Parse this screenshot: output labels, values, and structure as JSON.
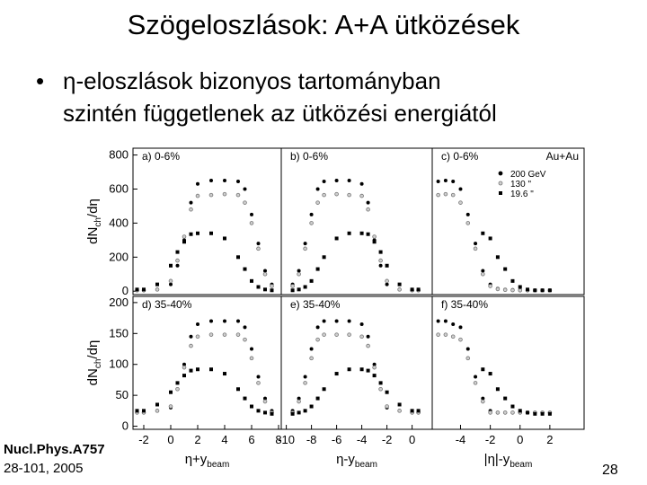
{
  "slide": {
    "title": "Szögeloszlások: A+A ütközések",
    "bullet": [
      "η-eloszlások bizonyos tartományban",
      "szintén függetlenek az ütközési energiától"
    ],
    "reference": [
      "Nucl.Phys.A757",
      "28-101, 2005"
    ],
    "page_number": "28"
  },
  "chart_data": [
    {
      "type": "scatter",
      "title": "a) 0-6%",
      "y_label": {
        "main": "dN",
        "sub": "ch",
        "tail": "/dη"
      },
      "x": [
        -2.5,
        -2,
        -1,
        0,
        0.5,
        1,
        1.5,
        2,
        3,
        4,
        5,
        5.5,
        6,
        6.5,
        7,
        7.5
      ],
      "series": [
        {
          "color": "#000000",
          "marker": "circle",
          "values": [
            5,
            5,
            10,
            40,
            150,
            300,
            520,
            630,
            650,
            650,
            645,
            600,
            450,
            280,
            120,
            40
          ]
        },
        {
          "color": "#777777",
          "marker": "circle-open",
          "values": [
            5,
            5,
            10,
            60,
            180,
            320,
            480,
            560,
            565,
            570,
            565,
            520,
            400,
            250,
            100,
            30
          ]
        },
        {
          "color": "#000000",
          "marker": "square",
          "values": [
            10,
            10,
            40,
            150,
            230,
            290,
            335,
            340,
            340,
            310,
            200,
            130,
            60,
            25,
            10,
            5
          ]
        }
      ],
      "xlim": [
        -2.8,
        8.2
      ],
      "ylim": [
        -20,
        840
      ],
      "yticks": [
        0,
        200,
        400,
        600,
        800
      ]
    },
    {
      "type": "scatter",
      "title": "b) 0-6%",
      "x": [
        -9.5,
        -9,
        -8.5,
        -8,
        -7.5,
        -7,
        -6,
        -5,
        -4,
        -3.5,
        -3,
        -2.5,
        -2,
        -1,
        0,
        0.5
      ],
      "series": [
        {
          "color": "#000000",
          "marker": "circle",
          "values": [
            40,
            120,
            280,
            450,
            600,
            645,
            650,
            650,
            630,
            520,
            300,
            150,
            40,
            10,
            5,
            5
          ]
        },
        {
          "color": "#777777",
          "marker": "circle-open",
          "values": [
            30,
            100,
            250,
            400,
            520,
            565,
            570,
            565,
            560,
            480,
            320,
            180,
            60,
            10,
            5,
            5
          ]
        },
        {
          "color": "#000000",
          "marker": "square",
          "values": [
            5,
            10,
            25,
            60,
            130,
            200,
            310,
            340,
            340,
            335,
            290,
            230,
            150,
            40,
            10,
            10
          ]
        }
      ],
      "xlim": [
        -10.4,
        1.6
      ],
      "ylim": [
        -20,
        840
      ]
    },
    {
      "type": "scatter",
      "title": "c) 0-6%",
      "legend": true,
      "legend_title": "Au+Au",
      "x": [
        -5.5,
        -5,
        -4.5,
        -4,
        -3.5,
        -3,
        -2.5,
        -2,
        -1.5,
        -1,
        -0.5,
        0,
        0.5,
        1,
        1.5,
        2
      ],
      "series": [
        {
          "name": "200 GeV",
          "color": "#000000",
          "marker": "circle",
          "values": [
            645,
            650,
            645,
            600,
            450,
            280,
            120,
            40,
            15,
            10,
            8,
            5,
            5,
            5,
            5,
            5
          ]
        },
        {
          "name": "130  \"",
          "color": "#777777",
          "marker": "circle-open",
          "values": [
            565,
            570,
            565,
            520,
            400,
            250,
            100,
            30,
            12,
            8,
            6,
            5,
            5,
            5,
            5,
            5
          ]
        },
        {
          "name": "19.6  \"",
          "color": "#000000",
          "marker": "square",
          "values": [
            null,
            null,
            null,
            null,
            null,
            null,
            340,
            310,
            200,
            130,
            60,
            25,
            10,
            5,
            5,
            5
          ]
        }
      ],
      "xlim": [
        -5.9,
        4.3
      ],
      "ylim": [
        -20,
        840
      ]
    },
    {
      "type": "scatter",
      "title": "d) 35-40%",
      "y_label": {
        "main": "dN",
        "sub": "ch",
        "tail": "/dη"
      },
      "x_label": {
        "main": "η+y",
        "sub": "beam"
      },
      "x": [
        -2.5,
        -2,
        -1,
        0,
        0.5,
        1,
        1.5,
        2,
        3,
        4,
        5,
        5.5,
        6,
        6.5,
        7,
        7.5
      ],
      "series": [
        {
          "color": "#000000",
          "marker": "circle",
          "values": [
            22,
            22,
            25,
            30,
            60,
            100,
            145,
            165,
            170,
            170,
            170,
            160,
            125,
            80,
            45,
            25
          ]
        },
        {
          "color": "#777777",
          "marker": "circle-open",
          "values": [
            22,
            22,
            25,
            32,
            60,
            95,
            130,
            145,
            148,
            148,
            148,
            140,
            110,
            70,
            40,
            22
          ]
        },
        {
          "color": "#000000",
          "marker": "square",
          "values": [
            25,
            25,
            35,
            55,
            70,
            82,
            90,
            92,
            92,
            85,
            60,
            45,
            32,
            25,
            22,
            20
          ]
        }
      ],
      "xlim": [
        -2.8,
        8.2
      ],
      "ylim": [
        -5,
        210
      ],
      "yticks": [
        0,
        50,
        100,
        150,
        200
      ],
      "xticks": [
        -2,
        0,
        2,
        4,
        6,
        8
      ]
    },
    {
      "type": "scatter",
      "title": "e) 35-40%",
      "x_label": {
        "main": "η-y",
        "sub": "beam"
      },
      "x": [
        -9.5,
        -9,
        -8.5,
        -8,
        -7.5,
        -7,
        -6,
        -5,
        -4,
        -3.5,
        -3,
        -2.5,
        -2,
        -1,
        0,
        0.5
      ],
      "series": [
        {
          "color": "#000000",
          "marker": "circle",
          "values": [
            25,
            45,
            80,
            125,
            160,
            170,
            170,
            170,
            165,
            145,
            100,
            60,
            30,
            25,
            22,
            22
          ]
        },
        {
          "color": "#777777",
          "marker": "circle-open",
          "values": [
            22,
            40,
            70,
            110,
            140,
            148,
            148,
            148,
            145,
            130,
            95,
            60,
            32,
            25,
            22,
            22
          ]
        },
        {
          "color": "#000000",
          "marker": "square",
          "values": [
            20,
            22,
            25,
            32,
            45,
            60,
            85,
            92,
            92,
            90,
            82,
            70,
            55,
            35,
            25,
            25
          ]
        }
      ],
      "xlim": [
        -10.4,
        1.6
      ],
      "ylim": [
        -5,
        210
      ],
      "xticks": [
        -10,
        -8,
        -6,
        -4,
        -2,
        0
      ]
    },
    {
      "type": "scatter",
      "title": "f) 35-40%",
      "x_label": {
        "main": "|η|-y",
        "sub": "beam"
      },
      "x": [
        -5.5,
        -5,
        -4.5,
        -4,
        -3.5,
        -3,
        -2.5,
        -2,
        -1.5,
        -1,
        -0.5,
        0,
        0.5,
        1,
        1.5,
        2
      ],
      "series": [
        {
          "color": "#000000",
          "marker": "circle",
          "values": [
            170,
            170,
            165,
            160,
            125,
            80,
            45,
            25,
            22,
            22,
            22,
            22,
            22,
            22,
            22,
            22
          ]
        },
        {
          "color": "#777777",
          "marker": "circle-open",
          "values": [
            148,
            148,
            145,
            140,
            110,
            70,
            40,
            22,
            22,
            22,
            22,
            22,
            22,
            22,
            22,
            22
          ]
        },
        {
          "color": "#000000",
          "marker": "square",
          "values": [
            null,
            null,
            null,
            null,
            null,
            null,
            92,
            85,
            60,
            45,
            32,
            25,
            22,
            20,
            20,
            20
          ]
        }
      ],
      "xlim": [
        -5.9,
        4.3
      ],
      "ylim": [
        -5,
        210
      ],
      "xticks": [
        -4,
        -2,
        0,
        2
      ]
    }
  ]
}
